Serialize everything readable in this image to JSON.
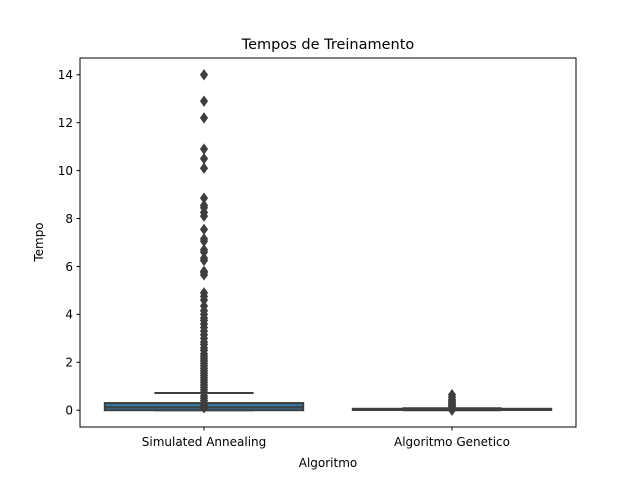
{
  "chart_data": {
    "type": "boxplot",
    "title": "Tempos de Treinamento",
    "xlabel": "Algoritmo",
    "ylabel": "Tempo",
    "categories": [
      "Simulated Annealing",
      "Algoritmo Genetico"
    ],
    "ylim": [
      -0.7,
      14.7
    ],
    "yticks": [
      0,
      2,
      4,
      6,
      8,
      10,
      12,
      14
    ],
    "colors": {
      "box": "#3274a1",
      "line": "#3f3f3f",
      "frame": "#000000"
    },
    "grid": false,
    "series": [
      {
        "category": "Simulated Annealing",
        "min": 0.0,
        "q1": 0.0,
        "median": 0.12,
        "q3": 0.3,
        "max": 0.72,
        "outliers": [
          0.1,
          0.2,
          0.3,
          0.4,
          0.5,
          0.6,
          0.75,
          0.85,
          0.95,
          1.05,
          1.15,
          1.25,
          1.35,
          1.45,
          1.55,
          1.65,
          1.75,
          1.85,
          1.95,
          2.05,
          2.15,
          2.25,
          2.35,
          2.5,
          2.6,
          2.75,
          2.85,
          3.0,
          3.15,
          3.3,
          3.45,
          3.6,
          3.75,
          3.85,
          4.0,
          4.15,
          4.35,
          4.6,
          4.75,
          4.9,
          5.65,
          5.75,
          5.8,
          6.25,
          6.35,
          6.6,
          6.7,
          7.05,
          7.15,
          7.55,
          8.1,
          8.25,
          8.45,
          8.55,
          8.85,
          10.1,
          10.5,
          10.9,
          12.2,
          12.9,
          14.0
        ]
      },
      {
        "category": "Algoritmo Genetico",
        "min": 0.0,
        "q1": 0.01,
        "median": 0.03,
        "q3": 0.06,
        "max": 0.08,
        "outliers": [
          0.0,
          0.05,
          0.1,
          0.15,
          0.2,
          0.25,
          0.3,
          0.35,
          0.4,
          0.45,
          0.55,
          0.65
        ]
      }
    ]
  }
}
